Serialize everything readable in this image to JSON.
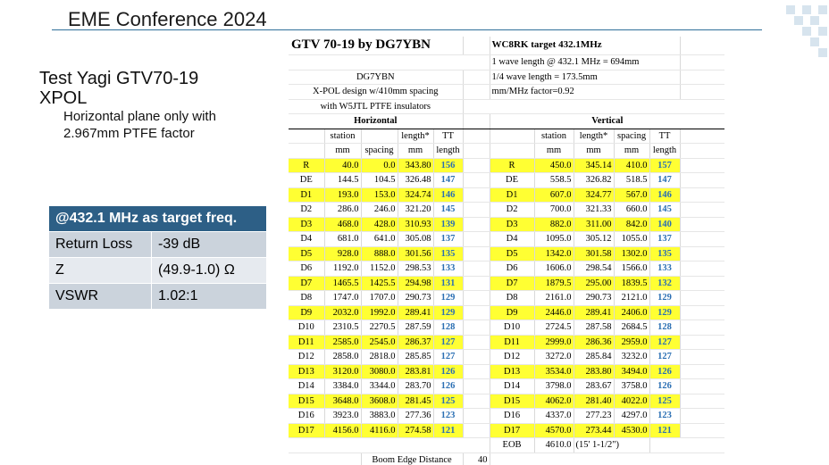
{
  "slide": {
    "title": "EME Conference 2024",
    "heading_line1": "Test Yagi GTV70-19",
    "heading_line2": "XPOL",
    "note_line1": "Horizontal plane only with",
    "note_line2": "2.967mm PTFE factor",
    "accent_color": "#2d5f86"
  },
  "match_box": {
    "header": "@432.1 MHz as target freq.",
    "rows": [
      {
        "label": "Return Loss",
        "value": "-39 dB"
      },
      {
        "label": "Z",
        "value": "(49.9-1.0) Ω"
      },
      {
        "label": "VSWR",
        "value": "1.02:1"
      }
    ]
  },
  "sheet": {
    "title": "GTV  70-19 by DG7YBN",
    "wc_title": "WC8RK target 432.1MHz",
    "wc_line1": "1 wave length @ 432.1 MHz = 694mm",
    "wc_line2": "1/4 wave length = 173.5mm",
    "wc_line3": "mm/MHz factor=0.92",
    "info_line1": "DG7YBN",
    "info_line2": "X-POL design w/410mm spacing",
    "info_line3": "with W5JTL PTFE insulators",
    "h_section": "Horizontal",
    "v_section": "Vertical",
    "col_station": "station",
    "col_length": "length*",
    "col_tt": "TT",
    "col_spacing": "spacing",
    "unit_mm": "mm",
    "unit_length": "length",
    "horizontal": [
      [
        "R",
        "40.0",
        "0.0",
        "343.80",
        "156"
      ],
      [
        "DE",
        "144.5",
        "104.5",
        "326.48",
        "147"
      ],
      [
        "D1",
        "193.0",
        "153.0",
        "324.74",
        "146"
      ],
      [
        "D2",
        "286.0",
        "246.0",
        "321.20",
        "145"
      ],
      [
        "D3",
        "468.0",
        "428.0",
        "310.93",
        "139"
      ],
      [
        "D4",
        "681.0",
        "641.0",
        "305.08",
        "137"
      ],
      [
        "D5",
        "928.0",
        "888.0",
        "301.56",
        "135"
      ],
      [
        "D6",
        "1192.0",
        "1152.0",
        "298.53",
        "133"
      ],
      [
        "D7",
        "1465.5",
        "1425.5",
        "294.98",
        "131"
      ],
      [
        "D8",
        "1747.0",
        "1707.0",
        "290.73",
        "129"
      ],
      [
        "D9",
        "2032.0",
        "1992.0",
        "289.41",
        "129"
      ],
      [
        "D10",
        "2310.5",
        "2270.5",
        "287.59",
        "128"
      ],
      [
        "D11",
        "2585.0",
        "2545.0",
        "286.37",
        "127"
      ],
      [
        "D12",
        "2858.0",
        "2818.0",
        "285.85",
        "127"
      ],
      [
        "D13",
        "3120.0",
        "3080.0",
        "283.81",
        "126"
      ],
      [
        "D14",
        "3384.0",
        "3344.0",
        "283.70",
        "126"
      ],
      [
        "D15",
        "3648.0",
        "3608.0",
        "281.45",
        "125"
      ],
      [
        "D16",
        "3923.0",
        "3883.0",
        "277.36",
        "123"
      ],
      [
        "D17",
        "4156.0",
        "4116.0",
        "274.58",
        "121"
      ]
    ],
    "vertical": [
      [
        "R",
        "450.0",
        "345.14",
        "410.0",
        "157"
      ],
      [
        "DE",
        "558.5",
        "326.82",
        "518.5",
        "147"
      ],
      [
        "D1",
        "607.0",
        "324.77",
        "567.0",
        "146"
      ],
      [
        "D2",
        "700.0",
        "321.33",
        "660.0",
        "145"
      ],
      [
        "D3",
        "882.0",
        "311.00",
        "842.0",
        "140"
      ],
      [
        "D4",
        "1095.0",
        "305.12",
        "1055.0",
        "137"
      ],
      [
        "D5",
        "1342.0",
        "301.58",
        "1302.0",
        "135"
      ],
      [
        "D6",
        "1606.0",
        "298.54",
        "1566.0",
        "133"
      ],
      [
        "D7",
        "1879.5",
        "295.00",
        "1839.5",
        "132"
      ],
      [
        "D8",
        "2161.0",
        "290.73",
        "2121.0",
        "129"
      ],
      [
        "D9",
        "2446.0",
        "289.41",
        "2406.0",
        "129"
      ],
      [
        "D10",
        "2724.5",
        "287.58",
        "2684.5",
        "128"
      ],
      [
        "D11",
        "2999.0",
        "286.36",
        "2959.0",
        "127"
      ],
      [
        "D12",
        "3272.0",
        "285.84",
        "3232.0",
        "127"
      ],
      [
        "D13",
        "3534.0",
        "283.80",
        "3494.0",
        "126"
      ],
      [
        "D14",
        "3798.0",
        "283.67",
        "3758.0",
        "126"
      ],
      [
        "D15",
        "4062.0",
        "281.40",
        "4022.0",
        "125"
      ],
      [
        "D16",
        "4337.0",
        "277.23",
        "4297.0",
        "123"
      ],
      [
        "D17",
        "4570.0",
        "273.44",
        "4530.0",
        "121"
      ]
    ],
    "eob_label": "EOB",
    "eob_value": "4610.0",
    "eob_note": "(15' 1-1/2\")",
    "boom_label": "Boom Edge Distance",
    "boom_value": "40"
  }
}
